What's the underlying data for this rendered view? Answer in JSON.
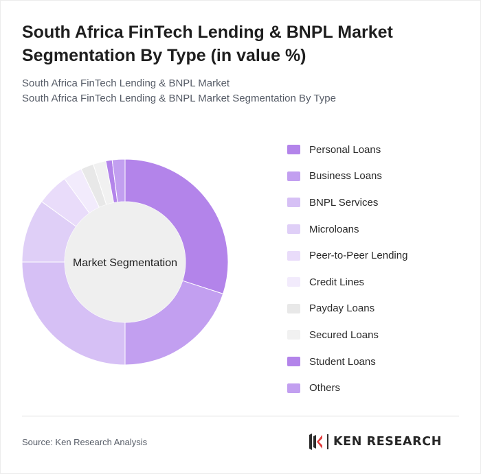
{
  "header": {
    "title": "South Africa FinTech Lending & BNPL Market Segmentation By Type (in value %)",
    "subtitle_line1": "South Africa FinTech Lending & BNPL Market",
    "subtitle_line2": "South Africa FinTech Lending & BNPL Market Segmentation By Type"
  },
  "chart_data": {
    "type": "pie",
    "variant": "donut",
    "center_label": "Market Segmentation",
    "legend_position": "right",
    "categories": [
      "Personal Loans",
      "Business Loans",
      "BNPL Services",
      "Microloans",
      "Peer-to-Peer Lending",
      "Credit Lines",
      "Payday Loans",
      "Secured Loans",
      "Student Loans",
      "Others"
    ],
    "values": [
      30,
      20,
      25,
      10,
      5,
      3,
      2,
      2,
      1,
      2
    ],
    "colors": [
      "#b384ea",
      "#c29ff0",
      "#d6c0f5",
      "#dfcff7",
      "#e9dcfa",
      "#f2ebfc",
      "#e8e8e8",
      "#f1f1f1",
      "#b384ea",
      "#c29ff0"
    ]
  },
  "footer": {
    "source": "Source: Ken Research Analysis",
    "brand_name": "KEN RESEARCH"
  }
}
